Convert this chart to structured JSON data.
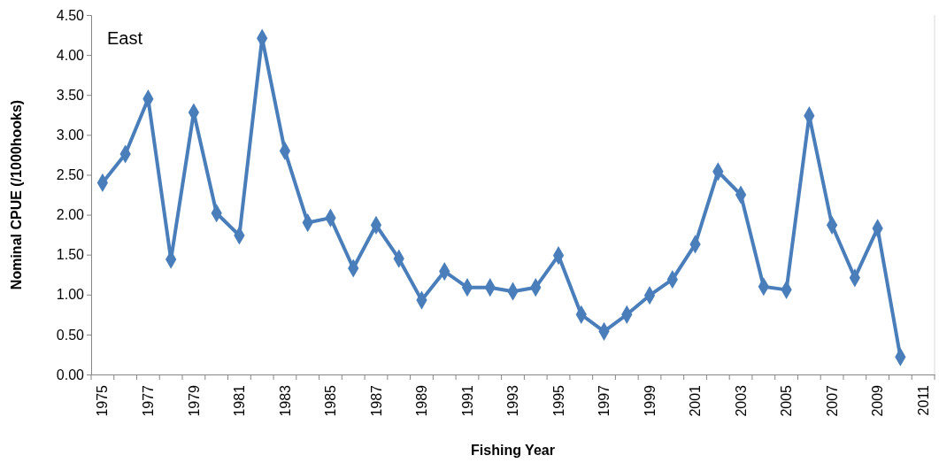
{
  "chart_data": {
    "type": "line",
    "xlabel": "Fishing Year",
    "ylabel": "Nominal CPUE (/1000hooks)",
    "annotations": [
      "East"
    ],
    "categories": [
      "1975",
      null,
      "1977",
      null,
      "1979",
      null,
      "1981",
      null,
      "1983",
      null,
      "1985",
      null,
      "1987",
      null,
      "1989",
      null,
      "1991",
      null,
      "1993",
      null,
      "1995",
      null,
      "1997",
      null,
      "1999",
      null,
      "2001",
      null,
      "2003",
      null,
      "2005",
      null,
      "2007",
      null,
      "2009",
      null,
      "2011"
    ],
    "series": [
      {
        "color": "#4a7ebb",
        "values": [
          2.4,
          2.76,
          3.45,
          1.44,
          3.28,
          2.02,
          1.74,
          4.21,
          2.8,
          1.9,
          1.96,
          1.33,
          1.87,
          1.45,
          0.93,
          1.29,
          1.09,
          1.09,
          1.04,
          1.09,
          1.49,
          0.75,
          0.54,
          0.75,
          0.99,
          1.19,
          1.63,
          2.54,
          2.25,
          1.1,
          1.06,
          3.24,
          1.87,
          1.21,
          1.83,
          0.22,
          null
        ]
      }
    ],
    "ylim": [
      0,
      4.5
    ],
    "yticks": [
      {
        "value": 0,
        "label": "0.00"
      },
      {
        "value": 0.5,
        "label": "0.50"
      },
      {
        "value": 1,
        "label": "1.00"
      },
      {
        "value": 1.5,
        "label": "1.50"
      },
      {
        "value": 2,
        "label": "2.00"
      },
      {
        "value": 2.5,
        "label": "2.50"
      },
      {
        "value": 3,
        "label": "3.00"
      },
      {
        "value": 3.5,
        "label": "3.50"
      },
      {
        "value": 4,
        "label": "4.00"
      },
      {
        "value": 4.5,
        "label": "4.50"
      }
    ],
    "marker": "diamond",
    "line_style": "solid",
    "grid": false
  }
}
